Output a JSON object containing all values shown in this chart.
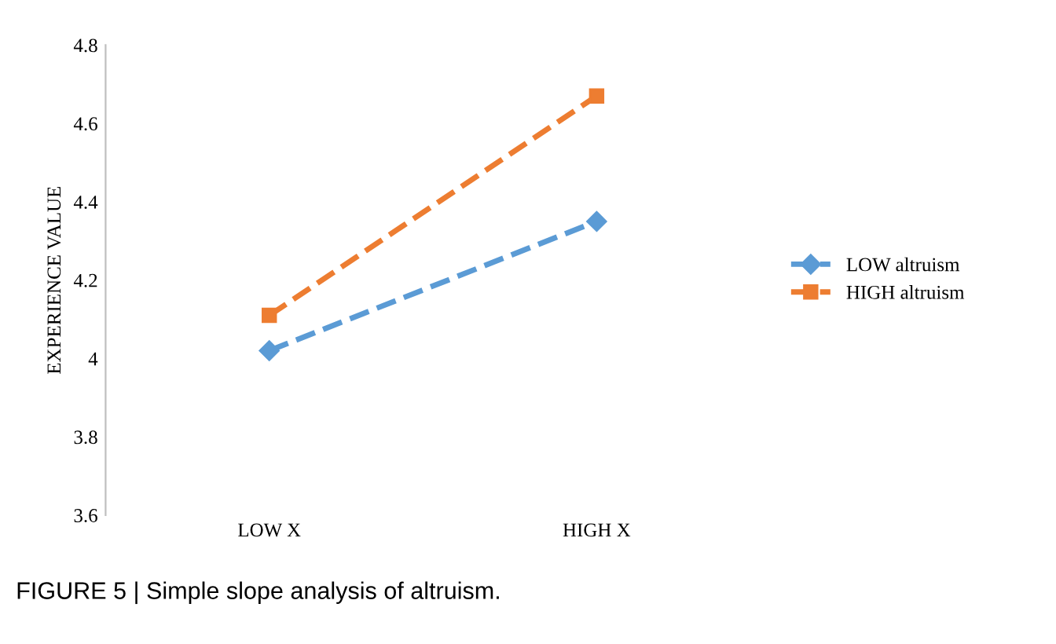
{
  "chart_data": {
    "type": "line",
    "ylabel": "EXPERIENCE VALUE",
    "categories": [
      "LOW X",
      "HIGH X"
    ],
    "series": [
      {
        "name": "LOW altruism",
        "color": "#5b9bd5",
        "values": [
          4.02,
          4.35
        ],
        "marker": "diamond",
        "line_style": "dashed"
      },
      {
        "name": "HIGH altruism",
        "color": "#ed7d31",
        "values": [
          4.11,
          4.67
        ],
        "marker": "square",
        "line_style": "dashed"
      }
    ],
    "ylim": [
      3.6,
      4.8
    ],
    "yticks": [
      3.6,
      3.8,
      4,
      4.2,
      4.4,
      4.6,
      4.8
    ],
    "grid": false,
    "legend": "right",
    "annotations": [
      "FIGURE 5 | Simple slope analysis of altruism."
    ]
  }
}
